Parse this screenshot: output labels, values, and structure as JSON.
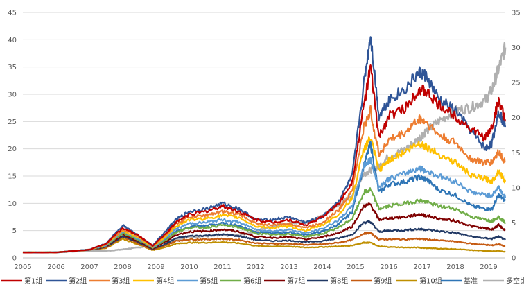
{
  "chart_data": {
    "type": "line",
    "title": "",
    "xlabel": "",
    "ylabel": "",
    "ylim": [
      0,
      45
    ],
    "y2lim": [
      0,
      35
    ],
    "y_ticks": [
      "0",
      "5",
      "10",
      "15",
      "20",
      "25",
      "30",
      "35",
      "40",
      "45"
    ],
    "y2_ticks": [
      "0",
      "5",
      "10",
      "15",
      "20",
      "25",
      "30",
      "35"
    ],
    "x_ticks": [
      "2005",
      "2006",
      "2007",
      "2008",
      "2009",
      "2010",
      "2011",
      "2012",
      "2013",
      "2014",
      "2015",
      "2016",
      "2017",
      "2018",
      "2019"
    ],
    "x_range": [
      2005.0,
      2019.5
    ],
    "grid": true,
    "legend_position": "bottom",
    "x": [
      2005.0,
      2006.0,
      2007.0,
      2007.5,
      2008.0,
      2008.5,
      2008.9,
      2009.3,
      2009.6,
      2010.0,
      2010.5,
      2011.0,
      2011.5,
      2012.0,
      2012.5,
      2013.0,
      2013.5,
      2014.0,
      2014.5,
      2014.9,
      2015.25,
      2015.45,
      2015.7,
      2016.0,
      2016.5,
      2016.9,
      2017.1,
      2017.5,
      2018.0,
      2018.5,
      2018.9,
      2019.1,
      2019.3,
      2019.5
    ],
    "series": [
      {
        "name": "第1组",
        "color": "#c00000",
        "axis": "left",
        "width": 2.2,
        "values": [
          1.0,
          1.0,
          1.5,
          2.6,
          5.5,
          4.0,
          2.2,
          4.5,
          6.5,
          8.0,
          8.5,
          9.5,
          8.5,
          7.0,
          6.5,
          7.0,
          6.0,
          7.5,
          10.0,
          14.0,
          28.0,
          35.0,
          22.0,
          26.0,
          27.5,
          31.0,
          30.5,
          28.0,
          26.0,
          23.5,
          22.0,
          24.0,
          29.0,
          25.0
        ]
      },
      {
        "name": "第2组",
        "color": "#2f5597",
        "axis": "left",
        "width": 2.2,
        "values": [
          1.0,
          1.0,
          1.5,
          2.6,
          6.0,
          4.0,
          2.2,
          5.0,
          7.0,
          8.5,
          9.0,
          10.0,
          9.0,
          7.0,
          7.0,
          7.5,
          6.5,
          7.5,
          10.5,
          15.0,
          32.0,
          41.0,
          26.0,
          29.0,
          31.0,
          34.0,
          33.5,
          29.0,
          27.0,
          23.0,
          20.0,
          21.0,
          27.0,
          24.0
        ]
      },
      {
        "name": "第3组",
        "color": "#ed7d31",
        "axis": "left",
        "width": 2.2,
        "values": [
          1.0,
          1.0,
          1.5,
          2.5,
          5.2,
          3.8,
          2.1,
          4.3,
          6.2,
          7.5,
          7.8,
          8.5,
          8.0,
          6.3,
          6.0,
          6.3,
          5.5,
          6.5,
          8.8,
          12.5,
          24.0,
          27.0,
          19.0,
          21.5,
          23.0,
          25.5,
          25.0,
          22.5,
          21.0,
          18.0,
          17.5,
          17.5,
          19.5,
          17.5
        ]
      },
      {
        "name": "第4组",
        "color": "#ffc000",
        "axis": "left",
        "width": 2.2,
        "values": [
          1.0,
          1.0,
          1.5,
          2.4,
          5.0,
          3.6,
          2.0,
          4.0,
          5.8,
          7.0,
          7.2,
          7.8,
          7.4,
          5.8,
          5.5,
          5.8,
          5.0,
          6.0,
          8.0,
          11.0,
          20.0,
          22.0,
          16.0,
          18.0,
          19.5,
          21.0,
          20.5,
          19.0,
          17.5,
          15.0,
          14.5,
          14.0,
          16.0,
          14.0
        ]
      },
      {
        "name": "第5组",
        "color": "#5b9bd5",
        "axis": "left",
        "width": 2.2,
        "values": [
          1.0,
          1.0,
          1.5,
          2.3,
          4.8,
          3.4,
          1.9,
          3.7,
          5.3,
          6.3,
          6.5,
          7.0,
          6.5,
          5.2,
          4.9,
          5.2,
          4.5,
          5.3,
          7.0,
          9.5,
          17.0,
          18.0,
          13.0,
          14.5,
          15.5,
          16.5,
          16.0,
          15.0,
          14.0,
          12.0,
          11.5,
          11.5,
          13.0,
          11.0
        ]
      },
      {
        "name": "第6组",
        "color": "#70ad47",
        "axis": "left",
        "width": 2.2,
        "values": [
          1.0,
          1.0,
          1.5,
          2.2,
          4.5,
          3.2,
          1.8,
          3.3,
          4.7,
          5.5,
          5.6,
          6.0,
          5.6,
          4.5,
          4.2,
          4.4,
          3.9,
          4.4,
          5.6,
          7.2,
          12.0,
          12.5,
          9.0,
          9.5,
          10.0,
          10.5,
          10.3,
          9.5,
          9.0,
          7.5,
          7.0,
          6.8,
          7.5,
          6.5
        ]
      },
      {
        "name": "第7组",
        "color": "#7f0000",
        "axis": "left",
        "width": 2.2,
        "values": [
          1.0,
          1.0,
          1.5,
          2.1,
          4.3,
          3.0,
          1.7,
          3.0,
          4.2,
          4.8,
          4.9,
          5.2,
          4.8,
          3.9,
          3.7,
          3.8,
          3.4,
          3.8,
          4.6,
          5.8,
          9.5,
          9.8,
          7.0,
          7.3,
          7.5,
          8.0,
          7.8,
          7.2,
          6.8,
          5.8,
          5.4,
          5.2,
          6.0,
          5.0
        ]
      },
      {
        "name": "第8组",
        "color": "#203864",
        "axis": "left",
        "width": 2.2,
        "values": [
          1.0,
          1.0,
          1.5,
          2.0,
          4.0,
          2.8,
          1.6,
          2.6,
          3.6,
          4.0,
          4.1,
          4.3,
          4.0,
          3.3,
          3.1,
          3.2,
          2.9,
          3.1,
          3.6,
          4.3,
          6.5,
          6.6,
          4.8,
          5.0,
          5.1,
          5.3,
          5.2,
          4.9,
          4.6,
          3.9,
          3.6,
          3.5,
          3.9,
          3.3
        ]
      },
      {
        "name": "第9组",
        "color": "#c55a11",
        "axis": "left",
        "width": 2.2,
        "values": [
          1.0,
          1.0,
          1.5,
          1.9,
          3.8,
          2.6,
          1.5,
          2.3,
          3.1,
          3.4,
          3.4,
          3.5,
          3.3,
          2.7,
          2.6,
          2.6,
          2.4,
          2.5,
          2.8,
          3.3,
          4.5,
          4.6,
          3.4,
          3.4,
          3.4,
          3.5,
          3.4,
          3.2,
          3.0,
          2.6,
          2.4,
          2.3,
          2.5,
          2.1
        ]
      },
      {
        "name": "第10组",
        "color": "#bf8f00",
        "axis": "left",
        "width": 2.2,
        "values": [
          1.0,
          1.0,
          1.5,
          1.8,
          3.5,
          2.4,
          1.4,
          2.0,
          2.6,
          2.8,
          2.8,
          2.9,
          2.7,
          2.2,
          2.1,
          2.1,
          1.9,
          2.0,
          2.1,
          2.3,
          2.8,
          2.8,
          2.1,
          2.0,
          1.9,
          1.9,
          1.8,
          1.7,
          1.6,
          1.4,
          1.3,
          1.2,
          1.3,
          1.1
        ]
      },
      {
        "name": "基准",
        "color": "#2e75b6",
        "axis": "left",
        "width": 2.2,
        "values": [
          1.0,
          1.0,
          1.5,
          2.2,
          4.6,
          3.2,
          1.8,
          3.4,
          4.8,
          5.7,
          5.9,
          6.3,
          5.9,
          4.8,
          4.5,
          4.7,
          4.2,
          4.8,
          6.2,
          8.5,
          17.0,
          21.0,
          12.0,
          13.5,
          14.0,
          14.8,
          14.5,
          12.5,
          11.5,
          9.5,
          9.0,
          9.0,
          11.5,
          10.5
        ]
      },
      {
        "name": "多空比价",
        "color": "#b0b0b0",
        "axis": "right",
        "width": 2.6,
        "values": [
          0.8,
          0.8,
          1.0,
          1.0,
          1.2,
          1.5,
          1.8,
          2.2,
          2.6,
          3.0,
          3.1,
          3.2,
          3.2,
          3.8,
          4.5,
          5.0,
          5.0,
          6.0,
          7.5,
          9.0,
          12.0,
          12.5,
          13.0,
          14.5,
          15.5,
          17.0,
          18.0,
          19.5,
          21.0,
          21.5,
          22.5,
          24.0,
          27.0,
          30.0
        ]
      }
    ]
  }
}
